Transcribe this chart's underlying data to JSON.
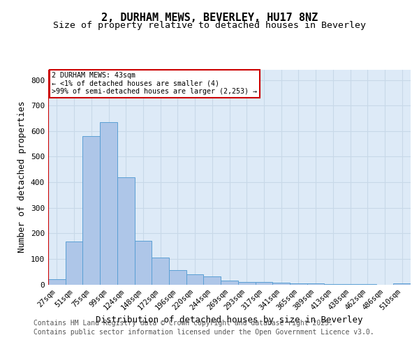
{
  "title1": "2, DURHAM MEWS, BEVERLEY, HU17 8NZ",
  "title2": "Size of property relative to detached houses in Beverley",
  "xlabel": "Distribution of detached houses by size in Beverley",
  "ylabel": "Number of detached properties",
  "categories": [
    "27sqm",
    "51sqm",
    "75sqm",
    "99sqm",
    "124sqm",
    "148sqm",
    "172sqm",
    "196sqm",
    "220sqm",
    "244sqm",
    "269sqm",
    "293sqm",
    "317sqm",
    "341sqm",
    "365sqm",
    "389sqm",
    "413sqm",
    "438sqm",
    "462sqm",
    "486sqm",
    "510sqm"
  ],
  "values": [
    20,
    168,
    580,
    635,
    420,
    172,
    105,
    57,
    40,
    32,
    15,
    10,
    9,
    6,
    4,
    3,
    2,
    1,
    1,
    0,
    5
  ],
  "bar_color": "#aec6e8",
  "bar_edge_color": "#5a9fd4",
  "grid_color": "#c8d8e8",
  "bg_color": "#ddeaf7",
  "annotation_box_text": "2 DURHAM MEWS: 43sqm\n← <1% of detached houses are smaller (4)\n>99% of semi-detached houses are larger (2,253) →",
  "annotation_box_color": "#ffffff",
  "annotation_box_edge_color": "#cc0000",
  "ylim": [
    0,
    840
  ],
  "yticks": [
    0,
    100,
    200,
    300,
    400,
    500,
    600,
    700,
    800
  ],
  "footer1": "Contains HM Land Registry data © Crown copyright and database right 2025.",
  "footer2": "Contains public sector information licensed under the Open Government Licence v3.0.",
  "title1_fontsize": 11,
  "title2_fontsize": 9.5,
  "tick_fontsize": 7.5,
  "label_fontsize": 9,
  "footer_fontsize": 7
}
